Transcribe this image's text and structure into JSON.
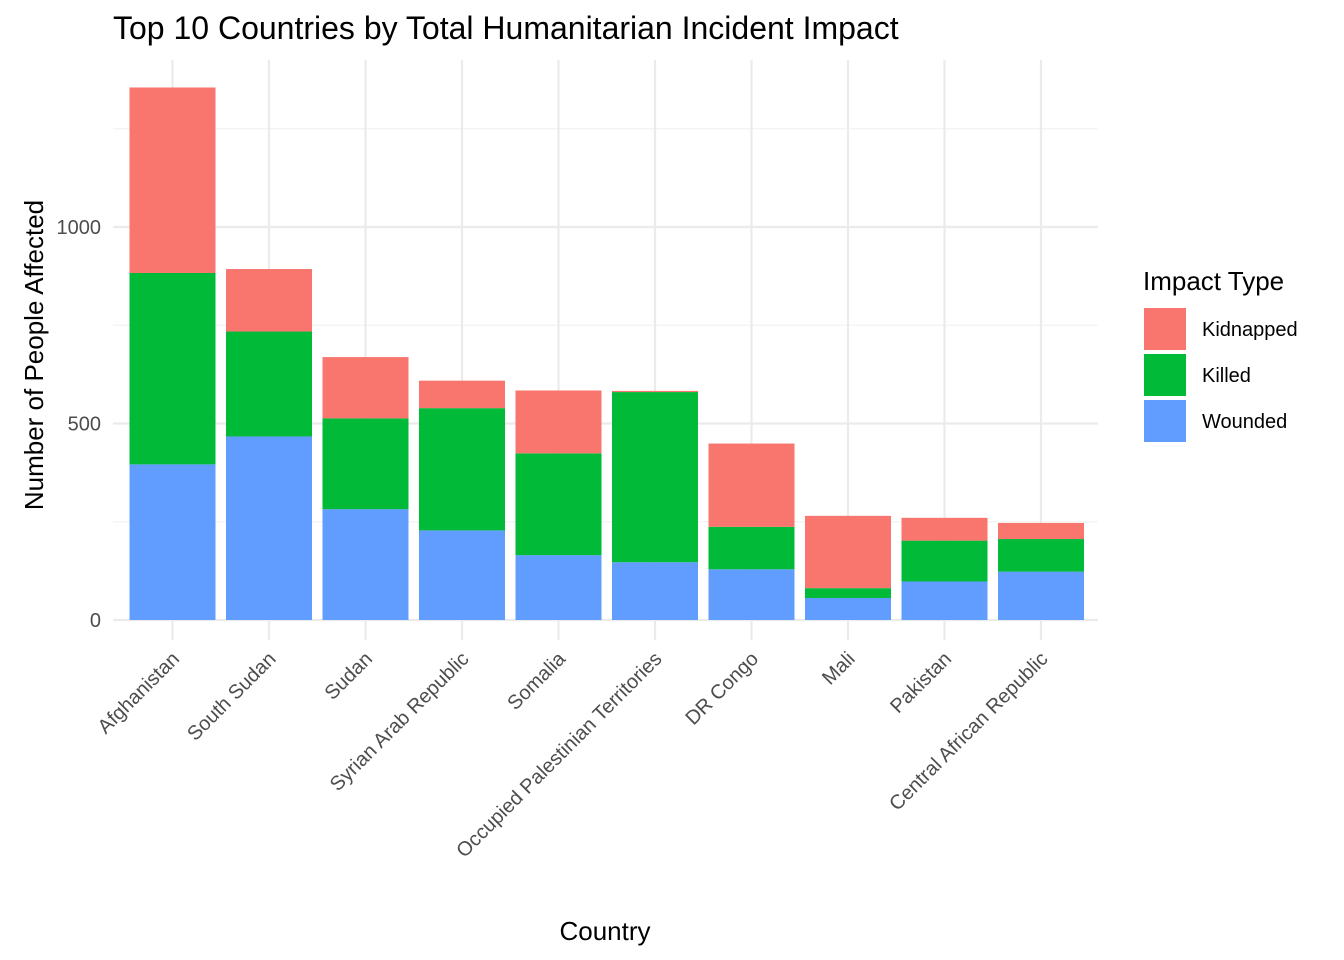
{
  "chart_data": {
    "type": "bar",
    "stacked": true,
    "title": "Top 10 Countries by Total Humanitarian Incident Impact",
    "xlabel": "Country",
    "ylabel": "Number of People Affected",
    "categories": [
      "Afghanistan",
      "South Sudan",
      "Sudan",
      "Syrian Arab Republic",
      "Somalia",
      "Occupied Palestinian Territories",
      "DR Congo",
      "Mali",
      "Pakistan",
      "Central African Republic"
    ],
    "series": [
      {
        "name": "Wounded",
        "color": "#619CFF",
        "values": [
          396,
          467,
          282,
          228,
          165,
          147,
          129,
          56,
          98,
          123
        ]
      },
      {
        "name": "Killed",
        "color": "#00BA38",
        "values": [
          487,
          267,
          231,
          311,
          259,
          433,
          108,
          25,
          104,
          83
        ]
      },
      {
        "name": "Kidnapped",
        "color": "#F8766D",
        "values": [
          472,
          159,
          156,
          70,
          160,
          3,
          212,
          184,
          58,
          41
        ]
      }
    ],
    "ylim": [
      0,
      1400
    ],
    "yticks": [
      0,
      500,
      1000
    ],
    "ytick_labels": [
      "0",
      "500",
      "1000"
    ],
    "grid": true,
    "legend": {
      "title": "Impact Type",
      "position": "right",
      "entries": [
        {
          "label": "Kidnapped",
          "color": "#F8766D"
        },
        {
          "label": "Killed",
          "color": "#00BA38"
        },
        {
          "label": "Wounded",
          "color": "#619CFF"
        }
      ]
    }
  }
}
